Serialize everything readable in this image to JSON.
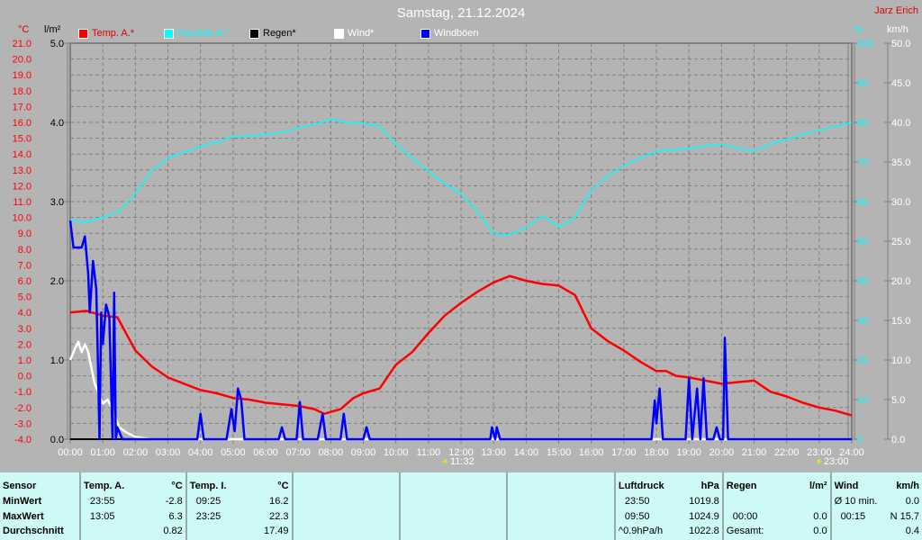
{
  "title": "Samstag, 21.12.2024",
  "author": "Jarz Erich",
  "legend": [
    {
      "label": "Temp. A.*",
      "color": "#ff0000"
    },
    {
      "label": "Feuchte A.*",
      "color": "#00ffff"
    },
    {
      "label": "Regen*",
      "color": "#000000"
    },
    {
      "label": "Wind*",
      "color": "#ffffff"
    },
    {
      "label": "Windböen",
      "color": "#0000ff"
    }
  ],
  "chart_data": {
    "type": "line",
    "title": "Samstag, 21.12.2024",
    "x_ticks": [
      "00:00",
      "01:00",
      "02:00",
      "03:00",
      "04:00",
      "05:00",
      "06:00",
      "07:00",
      "08:00",
      "09:00",
      "10:00",
      "11:00",
      "12:00",
      "13:00",
      "14:00",
      "15:00",
      "16:00",
      "17:00",
      "18:00",
      "19:00",
      "20:00",
      "21:00",
      "22:00",
      "23:00",
      "24:00"
    ],
    "xlim_hours": [
      0,
      24
    ],
    "axes": {
      "temp": {
        "unit": "°C",
        "range": [
          -4,
          21
        ],
        "ticks": [
          "21.0",
          "20.0",
          "19.0",
          "18.0",
          "17.0",
          "16.0",
          "15.0",
          "14.0",
          "13.0",
          "12.0",
          "11.0",
          "10.0",
          "9.0",
          "8.0",
          "7.0",
          "6.0",
          "5.0",
          "4.0",
          "3.0",
          "2.0",
          "1.0",
          "0.0",
          "-1.0",
          "-2.0",
          "-3.0",
          "-4.0"
        ],
        "color": "#ff0000"
      },
      "rain": {
        "unit": "l/m²",
        "range": [
          0,
          5
        ],
        "ticks": [
          "5.0",
          "4.0",
          "3.0",
          "2.0",
          "1.0",
          "0.0"
        ],
        "color": "#000000"
      },
      "humidity": {
        "unit": "%",
        "range": [
          0,
          100
        ],
        "ticks": [
          "100",
          "90",
          "80",
          "70",
          "60",
          "50",
          "40",
          "30",
          "20",
          "10",
          "0"
        ],
        "color": "#00ffff"
      },
      "wind": {
        "unit": "km/h",
        "range": [
          0,
          50
        ],
        "ticks": [
          "50.0",
          "45.0",
          "40.0",
          "35.0",
          "30.0",
          "25.0",
          "20.0",
          "15.0",
          "10.0",
          "5.0",
          "0.0"
        ],
        "color": "#ffffff"
      }
    },
    "grid": true,
    "series": [
      {
        "name": "Temp. A.*",
        "axis": "temp",
        "color": "#ff0000",
        "points": [
          [
            0,
            4.0
          ],
          [
            0.5,
            4.1
          ],
          [
            1,
            3.8
          ],
          [
            1.45,
            3.7
          ],
          [
            2,
            1.6
          ],
          [
            2.5,
            0.6
          ],
          [
            3,
            -0.1
          ],
          [
            3.5,
            -0.5
          ],
          [
            4,
            -0.9
          ],
          [
            4.5,
            -1.1
          ],
          [
            5,
            -1.4
          ],
          [
            5.5,
            -1.5
          ],
          [
            6,
            -1.7
          ],
          [
            6.5,
            -1.8
          ],
          [
            7,
            -1.9
          ],
          [
            7.5,
            -2.1
          ],
          [
            7.8,
            -2.4
          ],
          [
            8.3,
            -2.1
          ],
          [
            8.7,
            -1.4
          ],
          [
            9,
            -1.1
          ],
          [
            9.5,
            -0.8
          ],
          [
            10,
            0.7
          ],
          [
            10.5,
            1.5
          ],
          [
            11,
            2.7
          ],
          [
            11.5,
            3.8
          ],
          [
            12,
            4.6
          ],
          [
            12.5,
            5.3
          ],
          [
            13,
            5.9
          ],
          [
            13.5,
            6.3
          ],
          [
            14,
            6.0
          ],
          [
            14.5,
            5.8
          ],
          [
            15,
            5.7
          ],
          [
            15.5,
            5.1
          ],
          [
            16,
            3.0
          ],
          [
            16.5,
            2.2
          ],
          [
            17,
            1.6
          ],
          [
            17.5,
            0.9
          ],
          [
            18,
            0.3
          ],
          [
            18.3,
            0.3
          ],
          [
            18.6,
            0.0
          ],
          [
            19,
            -0.1
          ],
          [
            19.5,
            -0.3
          ],
          [
            20,
            -0.5
          ],
          [
            20.5,
            -0.4
          ],
          [
            21,
            -0.3
          ],
          [
            21.5,
            -1.0
          ],
          [
            22,
            -1.3
          ],
          [
            22.5,
            -1.7
          ],
          [
            23,
            -2.0
          ],
          [
            23.5,
            -2.2
          ],
          [
            24,
            -2.5
          ]
        ]
      },
      {
        "name": "Feuchte A.*",
        "axis": "humidity",
        "color": "#00ffff",
        "points": [
          [
            0,
            55.2
          ],
          [
            0.5,
            54.8
          ],
          [
            1,
            56
          ],
          [
            1.5,
            57.5
          ],
          [
            2,
            62
          ],
          [
            2.5,
            67.7
          ],
          [
            3,
            71
          ],
          [
            3.5,
            72.5
          ],
          [
            4,
            74
          ],
          [
            4.5,
            75
          ],
          [
            5,
            76.4
          ],
          [
            5.5,
            76.5
          ],
          [
            6,
            77
          ],
          [
            6.5,
            77.5
          ],
          [
            7,
            78.6
          ],
          [
            7.5,
            79.5
          ],
          [
            8,
            80.7
          ],
          [
            8.5,
            80
          ],
          [
            9,
            79.8
          ],
          [
            9.5,
            79
          ],
          [
            10,
            74.5
          ],
          [
            10.5,
            71
          ],
          [
            11,
            67.7
          ],
          [
            11.5,
            64.5
          ],
          [
            12,
            62
          ],
          [
            12.5,
            57.5
          ],
          [
            13,
            51.8
          ],
          [
            13.5,
            51.6
          ],
          [
            14,
            53.5
          ],
          [
            14.5,
            56.4
          ],
          [
            15,
            53.6
          ],
          [
            15.5,
            56
          ],
          [
            16,
            63
          ],
          [
            16.5,
            66.5
          ],
          [
            17,
            69
          ],
          [
            17.5,
            71
          ],
          [
            18,
            72.7
          ],
          [
            18.5,
            73
          ],
          [
            19,
            73.4
          ],
          [
            19.5,
            74
          ],
          [
            20,
            74.5
          ],
          [
            20.5,
            73.5
          ],
          [
            21,
            72.7
          ],
          [
            21.5,
            74.5
          ],
          [
            22,
            75.7
          ],
          [
            22.5,
            77
          ],
          [
            23,
            78
          ],
          [
            23.5,
            79
          ],
          [
            24,
            80
          ]
        ]
      },
      {
        "name": "Regen*",
        "axis": "rain",
        "color": "#000000",
        "points": [
          [
            0,
            0
          ],
          [
            24,
            0
          ]
        ]
      },
      {
        "name": "Wind*",
        "axis": "wind",
        "color": "#ffffff",
        "points": [
          [
            0,
            10
          ],
          [
            0.15,
            11.5
          ],
          [
            0.25,
            12.3
          ],
          [
            0.35,
            11
          ],
          [
            0.45,
            12
          ],
          [
            0.55,
            11
          ],
          [
            0.75,
            7
          ],
          [
            0.9,
            5.5
          ],
          [
            1,
            4.5
          ],
          [
            1.15,
            5
          ],
          [
            1.3,
            3.7
          ],
          [
            1.5,
            1.5
          ],
          [
            1.75,
            0.8
          ],
          [
            2,
            0.3
          ],
          [
            2.5,
            0
          ],
          [
            24,
            0
          ]
        ]
      },
      {
        "name": "Windböen",
        "axis": "wind",
        "color": "#0000ff",
        "points": [
          [
            0,
            27.6
          ],
          [
            0.1,
            24.2
          ],
          [
            0.35,
            24.2
          ],
          [
            0.45,
            25.6
          ],
          [
            0.55,
            21
          ],
          [
            0.6,
            16
          ],
          [
            0.7,
            22.5
          ],
          [
            0.8,
            19
          ],
          [
            0.85,
            10
          ],
          [
            0.9,
            0
          ],
          [
            0.95,
            16
          ],
          [
            1.0,
            12
          ],
          [
            1.05,
            14.5
          ],
          [
            1.1,
            17
          ],
          [
            1.2,
            15.5
          ],
          [
            1.3,
            0
          ],
          [
            1.35,
            18.5
          ],
          [
            1.4,
            0
          ],
          [
            1.45,
            1.5
          ],
          [
            1.6,
            0
          ],
          [
            3.9,
            0
          ],
          [
            4.0,
            3.2
          ],
          [
            4.1,
            0
          ],
          [
            4.8,
            0
          ],
          [
            4.95,
            3.8
          ],
          [
            5.05,
            1
          ],
          [
            5.15,
            6.4
          ],
          [
            5.25,
            5
          ],
          [
            5.35,
            0
          ],
          [
            6.4,
            0
          ],
          [
            6.5,
            1.5
          ],
          [
            6.6,
            0
          ],
          [
            6.95,
            0
          ],
          [
            7.05,
            4.7
          ],
          [
            7.15,
            0
          ],
          [
            7.6,
            0
          ],
          [
            7.75,
            3.2
          ],
          [
            7.85,
            0
          ],
          [
            8.3,
            0
          ],
          [
            8.4,
            3.2
          ],
          [
            8.5,
            0
          ],
          [
            9.0,
            0
          ],
          [
            9.1,
            1.5
          ],
          [
            9.2,
            0
          ],
          [
            12.9,
            0
          ],
          [
            12.95,
            1.5
          ],
          [
            13.05,
            0
          ],
          [
            13.1,
            1.5
          ],
          [
            13.2,
            0
          ],
          [
            17.85,
            0
          ],
          [
            17.95,
            4.9
          ],
          [
            18.0,
            2
          ],
          [
            18.1,
            6.4
          ],
          [
            18.2,
            0
          ],
          [
            18.9,
            0
          ],
          [
            19.0,
            7.7
          ],
          [
            19.1,
            0
          ],
          [
            19.25,
            6.4
          ],
          [
            19.35,
            0
          ],
          [
            19.45,
            7.7
          ],
          [
            19.55,
            0
          ],
          [
            19.75,
            0
          ],
          [
            19.85,
            1.5
          ],
          [
            19.95,
            0
          ],
          [
            20.05,
            0
          ],
          [
            20.1,
            12.8
          ],
          [
            20.2,
            0
          ],
          [
            24,
            0
          ]
        ]
      }
    ],
    "annotations": [
      {
        "time": 11.53,
        "label": "11:32",
        "icon": "sunrise-icon"
      },
      {
        "time": 23.0,
        "label": "23:00",
        "icon": "sunset-icon"
      }
    ]
  },
  "table": {
    "sensor": {
      "header": "Sensor",
      "rows": [
        "MinWert",
        "MaxWert",
        "Durchschnitt"
      ]
    },
    "temp_a": {
      "header": "Temp. A.",
      "unit": "°C",
      "rows": [
        [
          "23:55",
          "-2.8"
        ],
        [
          "13:05",
          "6.3"
        ],
        [
          "",
          "0.82"
        ]
      ]
    },
    "temp_i": {
      "header": "Temp. I.",
      "unit": "°C",
      "rows": [
        [
          "09:25",
          "16.2"
        ],
        [
          "23:25",
          "22.3"
        ],
        [
          "",
          "17.49"
        ]
      ]
    },
    "luftdruck": {
      "header": "Luftdruck",
      "unit": "hPa",
      "rows": [
        [
          "23:50",
          "1019.8"
        ],
        [
          "09:50",
          "1024.9"
        ],
        [
          "^0.9hPa/h",
          "1022.8"
        ]
      ]
    },
    "regen": {
      "header": "Regen",
      "unit": "l/m²",
      "rows": [
        [
          "",
          ""
        ],
        [
          "00:00",
          "0.0"
        ],
        [
          "Gesamt:",
          "0.0"
        ]
      ]
    },
    "wind": {
      "header": "Wind",
      "unit": "km/h",
      "rows": [
        [
          "Ø 10 min.",
          "0.0"
        ],
        [
          "00:15",
          "N 15.7"
        ],
        [
          "",
          "0.4"
        ]
      ]
    }
  }
}
